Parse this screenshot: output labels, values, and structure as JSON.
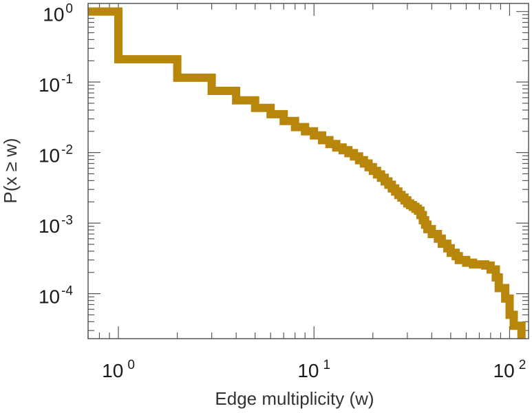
{
  "chart_data": {
    "type": "line",
    "step": true,
    "xscale": "log",
    "yscale": "log",
    "xlabel": "Edge multiplicity (w)",
    "ylabel": "P(x ≥ w)",
    "xlim": [
      0.7,
      125
    ],
    "ylim": [
      2.3e-05,
      1.3
    ],
    "grid": false,
    "line_color": "#B8860B",
    "x_ticks": [
      {
        "base": "10",
        "exp": "0",
        "value": 1
      },
      {
        "base": "10",
        "exp": "1",
        "value": 10
      },
      {
        "base": "10",
        "exp": "2",
        "value": 100
      }
    ],
    "y_ticks": [
      {
        "base": "10",
        "exp": "0",
        "value": 1
      },
      {
        "base": "10",
        "exp": "-1",
        "value": 0.1
      },
      {
        "base": "10",
        "exp": "-2",
        "value": 0.01
      },
      {
        "base": "10",
        "exp": "-3",
        "value": 0.001
      },
      {
        "base": "10",
        "exp": "-4",
        "value": 0.0001
      }
    ],
    "series": [
      {
        "points": [
          [
            0.7,
            1.0
          ],
          [
            1,
            1.0
          ],
          [
            1,
            0.21
          ],
          [
            2,
            0.21
          ],
          [
            2,
            0.115
          ],
          [
            3,
            0.115
          ],
          [
            3,
            0.075
          ],
          [
            4,
            0.075
          ],
          [
            4,
            0.055
          ],
          [
            5,
            0.055
          ],
          [
            5,
            0.043
          ],
          [
            6,
            0.043
          ],
          [
            6,
            0.035
          ],
          [
            7,
            0.035
          ],
          [
            7,
            0.028
          ],
          [
            8,
            0.028
          ],
          [
            8,
            0.023
          ],
          [
            9,
            0.023
          ],
          [
            9,
            0.02
          ],
          [
            10,
            0.02
          ],
          [
            10,
            0.0175
          ],
          [
            11,
            0.0175
          ],
          [
            11,
            0.015
          ],
          [
            12,
            0.015
          ],
          [
            12,
            0.0132
          ],
          [
            13,
            0.0132
          ],
          [
            13,
            0.0118
          ],
          [
            14,
            0.0118
          ],
          [
            14,
            0.0108
          ],
          [
            15,
            0.0108
          ],
          [
            15,
            0.0098
          ],
          [
            16,
            0.0098
          ],
          [
            16,
            0.0088
          ],
          [
            17,
            0.0088
          ],
          [
            17,
            0.0078
          ],
          [
            18,
            0.0078
          ],
          [
            18,
            0.007
          ],
          [
            19,
            0.007
          ],
          [
            19,
            0.0062
          ],
          [
            20,
            0.0062
          ],
          [
            20,
            0.0055
          ],
          [
            21,
            0.0055
          ],
          [
            21,
            0.0049
          ],
          [
            22,
            0.0049
          ],
          [
            22,
            0.0044
          ],
          [
            23,
            0.0044
          ],
          [
            23,
            0.0039
          ],
          [
            24,
            0.0039
          ],
          [
            24,
            0.0035
          ],
          [
            25,
            0.0035
          ],
          [
            25,
            0.0031
          ],
          [
            26,
            0.0031
          ],
          [
            26,
            0.0028
          ],
          [
            27,
            0.0028
          ],
          [
            27,
            0.0025
          ],
          [
            28,
            0.0025
          ],
          [
            28,
            0.0023
          ],
          [
            29,
            0.0023
          ],
          [
            29,
            0.0021
          ],
          [
            30,
            0.0021
          ],
          [
            30,
            0.0019
          ],
          [
            31,
            0.0019
          ],
          [
            31,
            0.0018
          ],
          [
            32,
            0.0018
          ],
          [
            32,
            0.0017
          ],
          [
            33,
            0.0017
          ],
          [
            33,
            0.0016
          ],
          [
            34,
            0.0016
          ],
          [
            34,
            0.0015
          ],
          [
            35,
            0.0015
          ],
          [
            35,
            0.0013
          ],
          [
            36,
            0.0013
          ],
          [
            36,
            0.0011
          ],
          [
            37,
            0.0011
          ],
          [
            37,
            0.00095
          ],
          [
            38,
            0.00095
          ],
          [
            38,
            0.00082
          ],
          [
            40,
            0.00082
          ],
          [
            40,
            0.0007
          ],
          [
            43,
            0.0007
          ],
          [
            43,
            0.0006
          ],
          [
            45,
            0.0006
          ],
          [
            45,
            0.00051
          ],
          [
            48,
            0.00051
          ],
          [
            48,
            0.00044
          ],
          [
            50,
            0.00044
          ],
          [
            50,
            0.00038
          ],
          [
            53,
            0.00038
          ],
          [
            53,
            0.00034
          ],
          [
            55,
            0.00034
          ],
          [
            55,
            0.0003
          ],
          [
            60,
            0.0003
          ],
          [
            60,
            0.000275
          ],
          [
            65,
            0.000275
          ],
          [
            65,
            0.00026
          ],
          [
            75,
            0.00026
          ],
          [
            75,
            0.00025
          ],
          [
            80,
            0.00025
          ],
          [
            80,
            0.00022
          ],
          [
            85,
            0.00022
          ],
          [
            85,
            0.00017
          ],
          [
            88,
            0.00017
          ],
          [
            88,
            0.00012
          ],
          [
            95,
            0.00012
          ],
          [
            95,
            8.5e-05
          ],
          [
            100,
            8.5e-05
          ],
          [
            100,
            5e-05
          ],
          [
            105,
            5e-05
          ],
          [
            105,
            3.5e-05
          ],
          [
            115,
            3.5e-05
          ],
          [
            115,
            2.3e-05
          ]
        ]
      }
    ]
  }
}
